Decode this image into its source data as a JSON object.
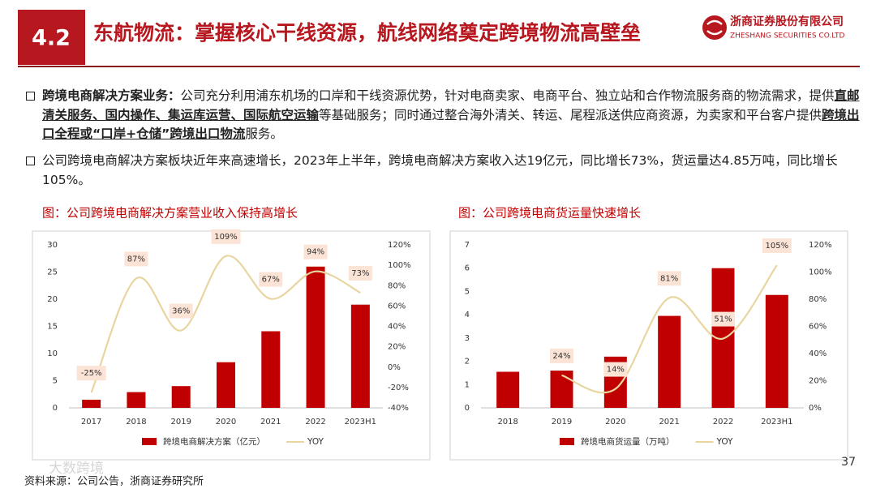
{
  "header": {
    "section": "4.2",
    "title": "东航物流：掌握核心干线资源，航线网络奠定跨境物流高壁垒",
    "company_cn": "浙商证券股份有限公司",
    "company_en": "ZHESHANG SECURITIES CO.LTD"
  },
  "bullets": [
    {
      "segments": [
        {
          "text": "跨境电商解决方案业务：",
          "style": "bold"
        },
        {
          "text": "公司充分利用浦东机场的口岸和干线资源优势，针对电商卖家、电商平台、独立站和合作物流服务商的物流需求，提供",
          "style": "normal"
        },
        {
          "text": "直邮清关服务、国内操作、集运库运营、国际航空运输",
          "style": "bold-underline"
        },
        {
          "text": "等基础服务；同时通过整合海外清关、转运、尾程派送供应商资源，为卖家和平台客户提供",
          "style": "normal"
        },
        {
          "text": "跨境出口全程或“口岸+仓储”跨境出口物流",
          "style": "bold-underline"
        },
        {
          "text": "服务。",
          "style": "normal"
        }
      ]
    },
    {
      "segments": [
        {
          "text": "公司跨境电商解决方案板块近年来高速增长，2023年上半年，跨境电商解决方案收入达19亿元，同比增长73%，货运量达4.85万吨，同比增长105%。",
          "style": "normal"
        }
      ]
    }
  ],
  "chart_data": [
    {
      "type": "bar-line",
      "title": "图：公司跨境电商解决方案营业收入保持高增长",
      "categories": [
        "2017",
        "2018",
        "2019",
        "2020",
        "2021",
        "2022",
        "2023H1"
      ],
      "series": [
        {
          "name": "跨境电商解决方案（亿元）",
          "color": "#c00000",
          "values": [
            1.5,
            2.9,
            4.0,
            8.4,
            14.1,
            26.0,
            19.0
          ]
        },
        {
          "name": "YOY",
          "color": "#e8d5a0",
          "axis": "y2",
          "values": [
            -25,
            87,
            36,
            109,
            67,
            94,
            73
          ],
          "value_labels": [
            "-25%",
            "87%",
            "36%",
            "109%",
            "67%",
            "94%",
            "73%"
          ]
        }
      ],
      "ylim": [
        0,
        30
      ],
      "yticks": [
        0,
        5,
        10,
        15,
        20,
        25,
        30
      ],
      "y2lim": [
        -40,
        120
      ],
      "y2ticks": [
        {
          "value": -40,
          "label": "-40%"
        },
        {
          "value": -20,
          "label": "-20%"
        },
        {
          "value": 0,
          "label": "0%"
        },
        {
          "value": 20,
          "label": "20%"
        },
        {
          "value": 40,
          "label": "40%"
        },
        {
          "value": 60,
          "label": "60%"
        },
        {
          "value": 80,
          "label": "80%"
        },
        {
          "value": 100,
          "label": "100%"
        },
        {
          "value": 120,
          "label": "120%"
        }
      ],
      "grid": false,
      "legend": "bottom"
    },
    {
      "type": "bar-line",
      "title": "图：公司跨境电商货运量快速增长",
      "categories": [
        "2018",
        "2019",
        "2020",
        "2021",
        "2022",
        "2023H1"
      ],
      "series": [
        {
          "name": "跨境电商货运量（万吨）",
          "color": "#c00000",
          "values": [
            1.55,
            1.6,
            2.2,
            3.95,
            6.0,
            4.85
          ]
        },
        {
          "name": "YOY",
          "color": "#e8d5a0",
          "axis": "y2",
          "values": [
            null,
            24,
            14,
            81,
            51,
            105
          ],
          "value_labels": [
            null,
            "24%",
            "14%",
            "81%",
            "51%",
            "105%"
          ]
        }
      ],
      "ylim": [
        0,
        7
      ],
      "yticks": [
        0,
        1,
        2,
        3,
        4,
        5,
        6,
        7
      ],
      "y2lim": [
        0,
        120
      ],
      "y2ticks": [
        {
          "value": 0,
          "label": "0%"
        },
        {
          "value": 20,
          "label": "20%"
        },
        {
          "value": 40,
          "label": "40%"
        },
        {
          "value": 60,
          "label": "60%"
        },
        {
          "value": 80,
          "label": "80%"
        },
        {
          "value": 100,
          "label": "100%"
        },
        {
          "value": 120,
          "label": "120%"
        }
      ],
      "grid": false,
      "legend": "bottom"
    }
  ],
  "page_number": "37",
  "source": "资料来源：公司公告，浙商证券研究所",
  "watermark": "大数跨境"
}
